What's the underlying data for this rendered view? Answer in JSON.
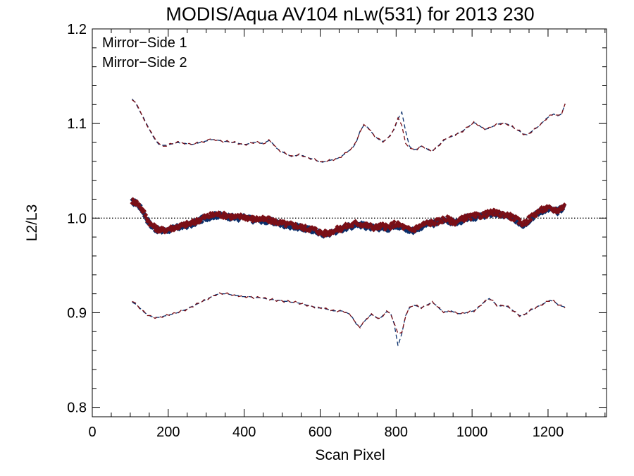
{
  "chart_data": {
    "type": "line",
    "title": "MODIS/Aqua AV104 nLw(531) for 2013 230",
    "xlabel": "Scan Pixel",
    "ylabel": "L2/L3",
    "xlim": [
      0,
      1354
    ],
    "ylim": [
      0.79,
      1.2
    ],
    "xticks": [
      0,
      200,
      400,
      600,
      800,
      1000,
      1200
    ],
    "xtick_labels": [
      "0",
      "200",
      "400",
      "600",
      "800",
      "1000",
      "1200"
    ],
    "yticks": [
      0.8,
      0.9,
      1.0,
      1.1,
      1.2
    ],
    "ytick_labels": [
      "0.8",
      "0.9",
      "1.0",
      "1.1",
      "1.2"
    ],
    "reference_line": 1.0,
    "legend": "top-left",
    "grid": false,
    "series": [
      {
        "name": "Mirror−Side 1",
        "color": "#0a2f6b",
        "marker": "diamond",
        "x": [
          105,
          115,
          125,
          135,
          145,
          155,
          165,
          175,
          185,
          195,
          205,
          215,
          225,
          235,
          245,
          255,
          265,
          275,
          285,
          295,
          305,
          315,
          325,
          335,
          345,
          355,
          365,
          375,
          385,
          395,
          405,
          415,
          425,
          435,
          445,
          455,
          465,
          475,
          485,
          495,
          505,
          515,
          525,
          535,
          545,
          555,
          565,
          575,
          585,
          595,
          605,
          615,
          625,
          635,
          645,
          655,
          665,
          675,
          685,
          695,
          705,
          715,
          725,
          735,
          745,
          755,
          765,
          775,
          785,
          795,
          805,
          815,
          825,
          835,
          845,
          855,
          865,
          875,
          885,
          895,
          905,
          915,
          925,
          935,
          945,
          955,
          965,
          975,
          985,
          995,
          1005,
          1015,
          1025,
          1035,
          1045,
          1055,
          1065,
          1075,
          1085,
          1095,
          1105,
          1115,
          1125,
          1135,
          1145,
          1155,
          1165,
          1175,
          1185,
          1195,
          1205,
          1215,
          1225,
          1235,
          1245
        ],
        "mean": [
          1.017,
          1.016,
          1.012,
          1.006,
          0.998,
          0.992,
          0.989,
          0.987,
          0.986,
          0.987,
          0.988,
          0.989,
          0.99,
          0.991,
          0.992,
          0.993,
          0.994,
          0.996,
          0.998,
          1.0,
          1.001,
          1.002,
          1.003,
          1.003,
          1.002,
          1.002,
          1.001,
          1.0,
          1.0,
          1.001,
          1.0,
          0.999,
          0.998,
          0.998,
          0.998,
          0.997,
          0.997,
          0.996,
          0.995,
          0.994,
          0.993,
          0.992,
          0.992,
          0.991,
          0.99,
          0.989,
          0.988,
          0.988,
          0.987,
          0.985,
          0.983,
          0.983,
          0.984,
          0.986,
          0.987,
          0.988,
          0.99,
          0.991,
          0.992,
          0.994,
          0.993,
          0.992,
          0.991,
          0.99,
          0.989,
          0.99,
          0.991,
          0.989,
          0.99,
          0.993,
          0.992,
          0.991,
          0.988,
          0.987,
          0.987,
          0.989,
          0.991,
          0.993,
          0.994,
          0.994,
          0.995,
          0.996,
          0.998,
          0.998,
          0.996,
          0.995,
          0.996,
          0.998,
          1.0,
          1.0,
          1.001,
          1.001,
          1.002,
          1.003,
          1.004,
          1.005,
          1.004,
          1.003,
          1.003,
          1.002,
          1.0,
          0.998,
          0.995,
          0.993,
          0.996,
          1.0,
          1.003,
          1.006,
          1.008,
          1.009,
          1.009,
          1.008,
          1.007,
          1.01,
          1.012
        ],
        "upper": [
          1.126,
          1.121,
          1.113,
          1.106,
          1.098,
          1.09,
          1.083,
          1.078,
          1.077,
          1.077,
          1.078,
          1.079,
          1.08,
          1.079,
          1.079,
          1.078,
          1.078,
          1.079,
          1.08,
          1.081,
          1.082,
          1.083,
          1.083,
          1.082,
          1.081,
          1.081,
          1.08,
          1.08,
          1.079,
          1.078,
          1.078,
          1.079,
          1.08,
          1.08,
          1.079,
          1.08,
          1.082,
          1.079,
          1.074,
          1.071,
          1.069,
          1.067,
          1.065,
          1.066,
          1.067,
          1.066,
          1.064,
          1.063,
          1.062,
          1.06,
          1.059,
          1.06,
          1.061,
          1.062,
          1.063,
          1.065,
          1.068,
          1.071,
          1.074,
          1.08,
          1.092,
          1.098,
          1.096,
          1.091,
          1.086,
          1.083,
          1.081,
          1.083,
          1.088,
          1.094,
          1.105,
          1.112,
          1.092,
          1.076,
          1.072,
          1.073,
          1.076,
          1.075,
          1.072,
          1.071,
          1.074,
          1.078,
          1.082,
          1.085,
          1.086,
          1.088,
          1.09,
          1.092,
          1.095,
          1.098,
          1.101,
          1.099,
          1.096,
          1.094,
          1.095,
          1.097,
          1.099,
          1.1,
          1.1,
          1.099,
          1.097,
          1.094,
          1.092,
          1.089,
          1.088,
          1.091,
          1.094,
          1.097,
          1.101,
          1.105,
          1.108,
          1.11,
          1.108,
          1.11,
          1.12
        ],
        "lower": [
          0.911,
          0.909,
          0.905,
          0.901,
          0.898,
          0.896,
          0.895,
          0.895,
          0.896,
          0.897,
          0.898,
          0.899,
          0.9,
          0.902,
          0.903,
          0.905,
          0.907,
          0.909,
          0.911,
          0.913,
          0.915,
          0.917,
          0.919,
          0.92,
          0.92,
          0.92,
          0.919,
          0.918,
          0.918,
          0.917,
          0.917,
          0.917,
          0.916,
          0.916,
          0.916,
          0.915,
          0.914,
          0.914,
          0.913,
          0.913,
          0.912,
          0.912,
          0.911,
          0.911,
          0.91,
          0.909,
          0.908,
          0.907,
          0.906,
          0.905,
          0.905,
          0.904,
          0.903,
          0.902,
          0.902,
          0.902,
          0.901,
          0.899,
          0.895,
          0.888,
          0.885,
          0.89,
          0.895,
          0.898,
          0.896,
          0.893,
          0.897,
          0.901,
          0.9,
          0.888,
          0.865,
          0.878,
          0.897,
          0.905,
          0.908,
          0.907,
          0.905,
          0.907,
          0.909,
          0.911,
          0.908,
          0.904,
          0.901,
          0.901,
          0.902,
          0.9,
          0.899,
          0.899,
          0.9,
          0.901,
          0.902,
          0.905,
          0.909,
          0.912,
          0.915,
          0.912,
          0.908,
          0.907,
          0.908,
          0.906,
          0.903,
          0.9,
          0.897,
          0.897,
          0.9,
          0.903,
          0.905,
          0.907,
          0.909,
          0.911,
          0.913,
          0.912,
          0.909,
          0.907,
          0.906
        ]
      },
      {
        "name": "Mirror−Side 2",
        "color": "#7a0f17",
        "marker": "diamond",
        "x": [
          105,
          115,
          125,
          135,
          145,
          155,
          165,
          175,
          185,
          195,
          205,
          215,
          225,
          235,
          245,
          255,
          265,
          275,
          285,
          295,
          305,
          315,
          325,
          335,
          345,
          355,
          365,
          375,
          385,
          395,
          405,
          415,
          425,
          435,
          445,
          455,
          465,
          475,
          485,
          495,
          505,
          515,
          525,
          535,
          545,
          555,
          565,
          575,
          585,
          595,
          605,
          615,
          625,
          635,
          645,
          655,
          665,
          675,
          685,
          695,
          705,
          715,
          725,
          735,
          745,
          755,
          765,
          775,
          785,
          795,
          805,
          815,
          825,
          835,
          845,
          855,
          865,
          875,
          885,
          895,
          905,
          915,
          925,
          935,
          945,
          955,
          965,
          975,
          985,
          995,
          1005,
          1015,
          1025,
          1035,
          1045,
          1055,
          1065,
          1075,
          1085,
          1095,
          1105,
          1115,
          1125,
          1135,
          1145,
          1155,
          1165,
          1175,
          1185,
          1195,
          1205,
          1215,
          1225,
          1235,
          1245
        ],
        "mean": [
          1.018,
          1.017,
          1.013,
          1.007,
          0.999,
          0.993,
          0.99,
          0.988,
          0.987,
          0.988,
          0.989,
          0.99,
          0.991,
          0.992,
          0.993,
          0.994,
          0.995,
          0.997,
          0.999,
          1.001,
          1.002,
          1.003,
          1.004,
          1.004,
          1.003,
          1.003,
          1.002,
          1.001,
          1.001,
          1.002,
          1.001,
          1.0,
          0.999,
          0.999,
          0.999,
          0.998,
          0.998,
          0.997,
          0.996,
          0.995,
          0.994,
          0.993,
          0.993,
          0.992,
          0.991,
          0.99,
          0.989,
          0.989,
          0.988,
          0.986,
          0.984,
          0.984,
          0.985,
          0.987,
          0.988,
          0.989,
          0.991,
          0.992,
          0.993,
          0.995,
          0.994,
          0.993,
          0.992,
          0.991,
          0.99,
          0.991,
          0.992,
          0.99,
          0.991,
          0.994,
          0.993,
          0.992,
          0.989,
          0.988,
          0.988,
          0.99,
          0.992,
          0.994,
          0.995,
          0.995,
          0.996,
          0.997,
          0.999,
          0.999,
          0.997,
          0.996,
          0.997,
          0.999,
          1.001,
          1.001,
          1.002,
          1.002,
          1.003,
          1.004,
          1.005,
          1.006,
          1.005,
          1.004,
          1.004,
          1.003,
          1.001,
          0.999,
          0.996,
          0.994,
          0.997,
          1.001,
          1.004,
          1.007,
          1.009,
          1.01,
          1.01,
          1.009,
          1.008,
          1.011,
          1.013
        ],
        "upper": [
          1.125,
          1.122,
          1.114,
          1.105,
          1.097,
          1.091,
          1.084,
          1.079,
          1.076,
          1.076,
          1.079,
          1.078,
          1.081,
          1.08,
          1.078,
          1.079,
          1.077,
          1.08,
          1.081,
          1.08,
          1.083,
          1.084,
          1.082,
          1.083,
          1.08,
          1.082,
          1.079,
          1.081,
          1.078,
          1.079,
          1.077,
          1.08,
          1.079,
          1.081,
          1.078,
          1.079,
          1.083,
          1.078,
          1.075,
          1.07,
          1.07,
          1.066,
          1.066,
          1.065,
          1.068,
          1.065,
          1.065,
          1.062,
          1.063,
          1.059,
          1.06,
          1.059,
          1.062,
          1.061,
          1.064,
          1.064,
          1.069,
          1.07,
          1.075,
          1.081,
          1.091,
          1.099,
          1.095,
          1.092,
          1.085,
          1.084,
          1.08,
          1.084,
          1.087,
          1.095,
          1.106,
          1.098,
          1.079,
          1.074,
          1.073,
          1.072,
          1.077,
          1.074,
          1.073,
          1.07,
          1.075,
          1.077,
          1.083,
          1.084,
          1.087,
          1.087,
          1.091,
          1.091,
          1.096,
          1.097,
          1.102,
          1.098,
          1.097,
          1.093,
          1.096,
          1.096,
          1.1,
          1.099,
          1.101,
          1.098,
          1.098,
          1.093,
          1.093,
          1.088,
          1.089,
          1.09,
          1.095,
          1.096,
          1.102,
          1.104,
          1.109,
          1.109,
          1.109,
          1.109,
          1.121
        ],
        "lower": [
          0.912,
          0.91,
          0.904,
          0.902,
          0.897,
          0.897,
          0.894,
          0.896,
          0.895,
          0.898,
          0.897,
          0.9,
          0.899,
          0.903,
          0.902,
          0.906,
          0.906,
          0.91,
          0.91,
          0.914,
          0.914,
          0.918,
          0.918,
          0.921,
          0.919,
          0.921,
          0.918,
          0.919,
          0.917,
          0.918,
          0.916,
          0.918,
          0.915,
          0.917,
          0.915,
          0.916,
          0.913,
          0.915,
          0.912,
          0.914,
          0.911,
          0.913,
          0.91,
          0.912,
          0.909,
          0.91,
          0.907,
          0.908,
          0.905,
          0.906,
          0.904,
          0.905,
          0.902,
          0.903,
          0.901,
          0.903,
          0.9,
          0.9,
          0.894,
          0.889,
          0.884,
          0.891,
          0.894,
          0.899,
          0.895,
          0.894,
          0.896,
          0.902,
          0.899,
          0.889,
          0.878,
          0.879,
          0.896,
          0.906,
          0.907,
          0.908,
          0.904,
          0.908,
          0.908,
          0.912,
          0.907,
          0.905,
          0.9,
          0.902,
          0.901,
          0.901,
          0.898,
          0.9,
          0.899,
          0.902,
          0.901,
          0.906,
          0.908,
          0.913,
          0.914,
          0.913,
          0.907,
          0.908,
          0.907,
          0.907,
          0.902,
          0.901,
          0.896,
          0.898,
          0.899,
          0.904,
          0.904,
          0.908,
          0.908,
          0.912,
          0.912,
          0.913,
          0.908,
          0.908,
          0.905
        ]
      }
    ]
  }
}
